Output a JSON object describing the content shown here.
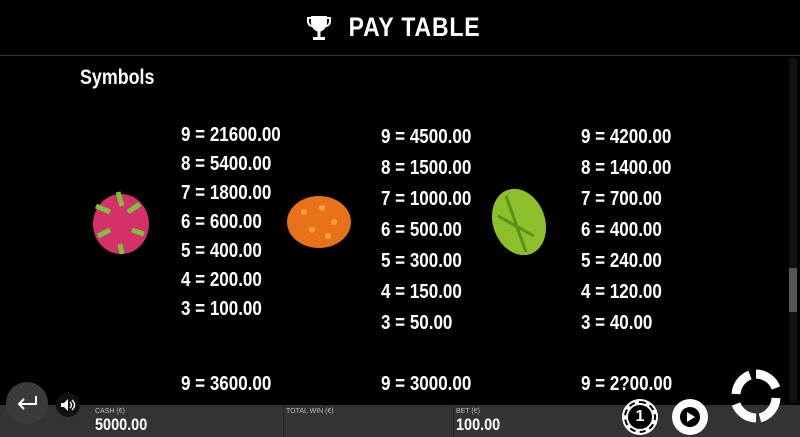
{
  "header": {
    "title": "PAY TABLE",
    "icon": "trophy-icon"
  },
  "section": {
    "title": "Symbols"
  },
  "symbols": [
    {
      "name": "dragon-fruit",
      "payouts": [
        "9 = 21600.00",
        "8 = 5400.00",
        "7 = 1800.00",
        "6 = 600.00",
        "5 = 400.00",
        "4 = 200.00",
        "3 = 100.00"
      ]
    },
    {
      "name": "kiwano",
      "payouts": [
        "9 = 4500.00",
        "8 = 1500.00",
        "7 = 1000.00",
        "6 = 500.00",
        "5 = 300.00",
        "4 = 150.00",
        "3 = 50.00"
      ]
    },
    {
      "name": "starfruit",
      "payouts": [
        "9 = 4200.00",
        "8 = 1400.00",
        "7 = 700.00",
        "6 = 400.00",
        "5 = 240.00",
        "4 = 120.00",
        "3 = 40.00"
      ]
    }
  ],
  "next_row": [
    "9 = 3600.00",
    "9 = 3000.00",
    "9 = 2?00.00"
  ],
  "bottom": {
    "cash_label": "CASH (€)",
    "cash": "5000.00",
    "win_label": "TOTAL WIN (€)",
    "win": "",
    "bet_label": "BET (€)",
    "bet": "100.00",
    "coin_value": "1"
  }
}
